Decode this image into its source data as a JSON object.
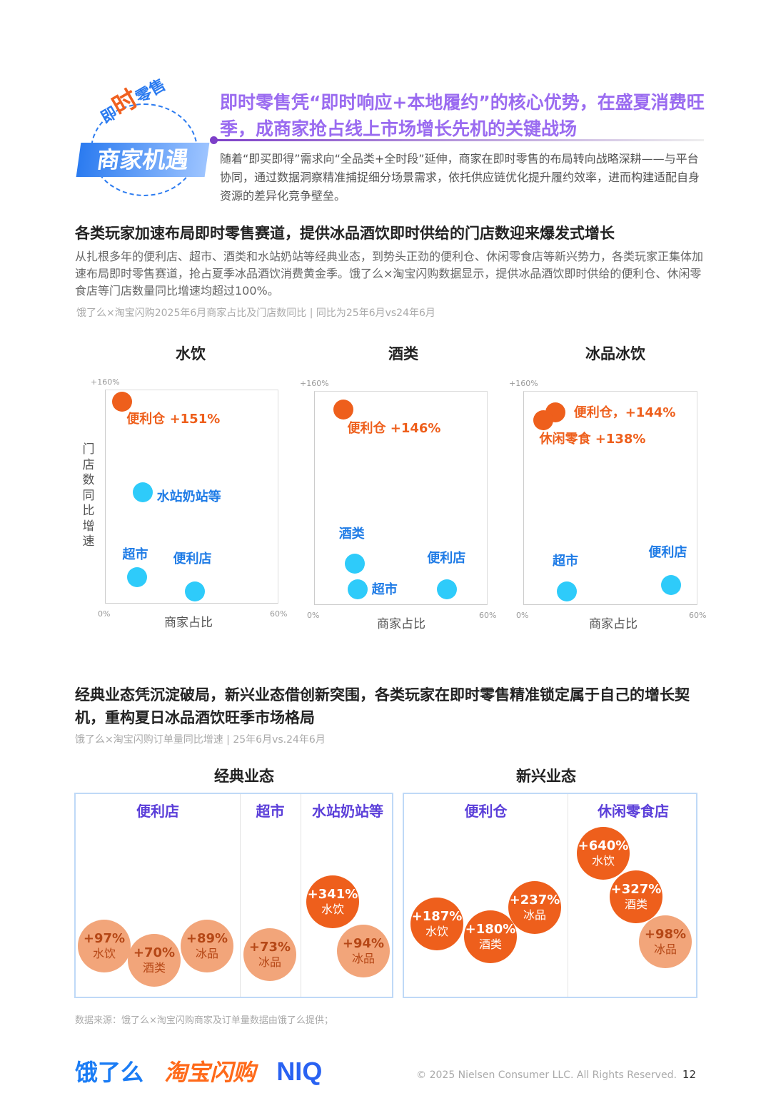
{
  "badge": {
    "top_text_1": "即",
    "top_text_2": "时",
    "top_text_3": "零售",
    "main": "商家机遇"
  },
  "headline": "即时零售凭“即时响应+本地履约”的核心优势，在盛夏消费旺季，成商家抢占线上市场增长先机的关键战场",
  "intro": "随着“即买即得”需求向“全品类+全时段”延伸，商家在即时零售的布局转向战略深耕——与平台协同，通过数据洞察精准捕捉细分场景需求，依托供应链优化提升履约效率，进而构建适配自身资源的差异化竞争壁垒。",
  "section1": {
    "title": "各类玩家加速布局即时零售赛道，提供冰品酒饮即时供给的门店数迎来爆发式增长",
    "body": "从扎根多年的便利店、超市、酒类和水站奶站等经典业态，到势头正劲的便利仓、休闲零食店等新兴势力，各类玩家正集体加速布局即时零售赛道，抢占夏季冰品酒饮消费黄金季。饿了么×淘宝闪购数据显示，提供冰品酒饮即时供给的便利仓、休闲零食店等门店数量同比增速均超过100%。",
    "source": "饿了么×淘宝闪购2025年6月商家占比及门店数同比 | 同比为25年6月vs24年6月"
  },
  "colors": {
    "orange": "#EE5F1C",
    "blue_dot": "#2ECBFA",
    "blue_label": "#1E7BE6",
    "light_orange": "#F2A57A",
    "purple": "#5B3FD9"
  },
  "chart_data": [
    {
      "type": "scatter",
      "title": "水饮",
      "xlabel": "商家占比",
      "ylabel": "门店数同比增速",
      "xlim": [
        0,
        60
      ],
      "ylim": [
        0,
        160
      ],
      "x_ticks": [
        "0%",
        "60%"
      ],
      "y_ticks": [
        "+160%"
      ],
      "points": [
        {
          "label": "便利仓 +151%",
          "x": 6,
          "y": 151,
          "color": "orange"
        },
        {
          "label": "水站奶站等",
          "x": 13,
          "y": 83,
          "color": "blue"
        },
        {
          "label": "超市",
          "x": 11,
          "y": 20,
          "color": "blue"
        },
        {
          "label": "便利店",
          "x": 31,
          "y": 9,
          "color": "blue"
        }
      ]
    },
    {
      "type": "scatter",
      "title": "酒类",
      "xlabel": "商家占比",
      "xlim": [
        0,
        60
      ],
      "ylim": [
        0,
        160
      ],
      "x_ticks": [
        "0%",
        "60%"
      ],
      "y_ticks": [
        "+160%"
      ],
      "points": [
        {
          "label": "便利仓 +146%",
          "x": 10,
          "y": 146,
          "color": "orange"
        },
        {
          "label": "酒类",
          "x": 14,
          "y": 31,
          "color": "blue"
        },
        {
          "label": "超市",
          "x": 15,
          "y": 12,
          "color": "blue"
        },
        {
          "label": "便利店",
          "x": 46,
          "y": 12,
          "color": "blue"
        }
      ]
    },
    {
      "type": "scatter",
      "title": "冰品冰饮",
      "xlabel": "商家占比",
      "xlim": [
        0,
        60
      ],
      "ylim": [
        0,
        160
      ],
      "x_ticks": [
        "0%",
        "60%"
      ],
      "y_ticks": [
        "+160%"
      ],
      "points": [
        {
          "label": "便利仓，+144%",
          "x": 11,
          "y": 144,
          "color": "orange"
        },
        {
          "label": "休闲零食 +138%",
          "x": 7,
          "y": 138,
          "color": "orange"
        },
        {
          "label": "超市",
          "x": 15,
          "y": 10,
          "color": "blue"
        },
        {
          "label": "便利店",
          "x": 51,
          "y": 15,
          "color": "blue"
        }
      ]
    }
  ],
  "section2": {
    "title": "经典业态凭沉淀破局，新兴业态借创新突围，各类玩家在即时零售精准锁定属于自己的增长契机，重构夏日冰品酒饮旺季市场格局",
    "source": "饿了么×淘宝闪购订单量同比增速 | 25年6月vs.24年6月",
    "groups": [
      {
        "title": "经典业态",
        "columns": [
          {
            "name": "便利店",
            "bubbles": [
              {
                "value": "+97%",
                "cat": "水饮",
                "tone": "light"
              },
              {
                "value": "+70%",
                "cat": "酒类",
                "tone": "light"
              },
              {
                "value": "+89%",
                "cat": "冰品",
                "tone": "light"
              }
            ]
          },
          {
            "name": "超市",
            "bubbles": [
              {
                "value": "+73%",
                "cat": "冰品",
                "tone": "light"
              }
            ]
          },
          {
            "name": "水站奶站等",
            "bubbles": [
              {
                "value": "+341%",
                "cat": "水饮",
                "tone": "dark"
              },
              {
                "value": "+94%",
                "cat": "冰品",
                "tone": "light"
              }
            ]
          }
        ]
      },
      {
        "title": "新兴业态",
        "columns": [
          {
            "name": "便利仓",
            "bubbles": [
              {
                "value": "+187%",
                "cat": "水饮",
                "tone": "dark"
              },
              {
                "value": "+180%",
                "cat": "酒类",
                "tone": "dark"
              },
              {
                "value": "+237%",
                "cat": "冰品",
                "tone": "dark"
              }
            ]
          },
          {
            "name": "休闲零食店",
            "bubbles": [
              {
                "value": "+640%",
                "cat": "水饮",
                "tone": "dark"
              },
              {
                "value": "+327%",
                "cat": "酒类",
                "tone": "dark"
              },
              {
                "value": "+98%",
                "cat": "冰品",
                "tone": "light"
              }
            ]
          }
        ]
      }
    ]
  },
  "footnote": "数据来源：饿了么×淘宝闪购商家及订单量数据由饿了么提供；",
  "footer": {
    "logo_eleme": "饿了么",
    "logo_taobao": "淘宝闪购",
    "logo_niq": "NIQ",
    "copyright": "© 2025 Nielsen Consumer LLC. All Rights Reserved.",
    "page": "12"
  }
}
